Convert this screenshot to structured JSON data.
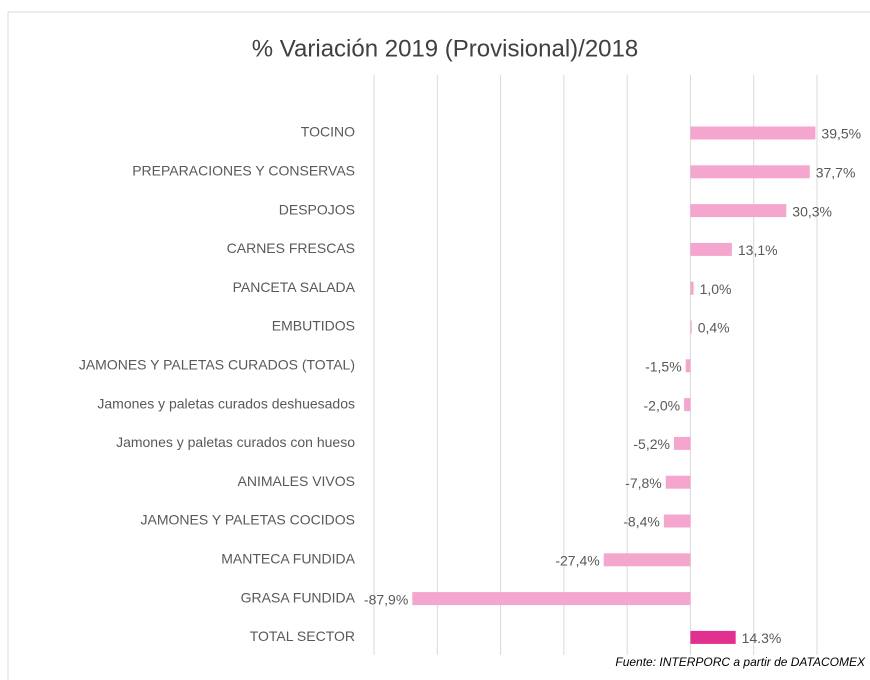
{
  "chart_data": {
    "type": "bar",
    "orientation": "horizontal",
    "title": "% Variación 2019 (Provisional)/2018",
    "source": "Fuente: INTERPORC  a partir de DATACOMEX",
    "categories": [
      "TOCINO",
      "PREPARACIONES Y CONSERVAS",
      "DESPOJOS",
      "CARNES FRESCAS",
      "PANCETA SALADA",
      "EMBUTIDOS",
      "JAMONES Y PALETAS CURADOS (TOTAL)",
      "Jamones y paletas curados deshuesados",
      "Jamones y paletas curados con hueso",
      "ANIMALES VIVOS",
      "JAMONES Y PALETAS COCIDOS",
      "MANTECA FUNDIDA",
      "GRASA FUNDIDA",
      "TOTAL SECTOR"
    ],
    "values": [
      39.5,
      37.7,
      30.3,
      13.1,
      1.0,
      0.4,
      -1.5,
      -2.0,
      -5.2,
      -7.8,
      -8.4,
      -27.4,
      -87.9,
      14.3
    ],
    "value_labels": [
      "39,5%",
      "37,7%",
      "30,3%",
      "13,1%",
      "1,0%",
      "0,4%",
      "-1,5%",
      "-2,0%",
      "-5,2%",
      "-7,8%",
      "-8,4%",
      "-27,4%",
      "-87,9%",
      "14.3%"
    ],
    "colors": [
      "#f4a6cf",
      "#f4a6cf",
      "#f4a6cf",
      "#f4a6cf",
      "#f4a6cf",
      "#f4a6cf",
      "#f4a6cf",
      "#f4a6cf",
      "#f4a6cf",
      "#f4a6cf",
      "#f4a6cf",
      "#f4a6cf",
      "#f4a6cf",
      "#e2308f"
    ],
    "xlim": [
      -100,
      40
    ],
    "xticks": [
      -100,
      -80,
      -60,
      -40,
      -20,
      0,
      20,
      40
    ],
    "grid": true
  }
}
